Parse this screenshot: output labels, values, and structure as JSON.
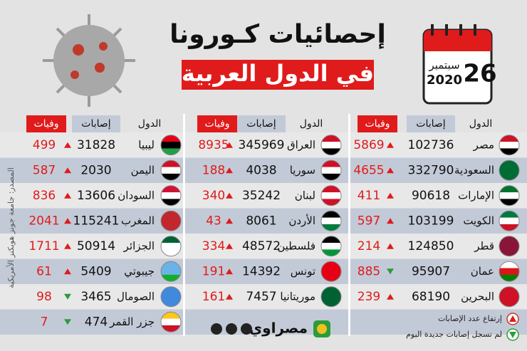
{
  "header": {
    "title": "إحصائيات كـورونا",
    "subtitle": "في الدول العربية"
  },
  "date": {
    "day": "26",
    "month": "سبتمبر",
    "year": "2020"
  },
  "table": {
    "columns": [
      "الدول",
      "إصابات",
      "وفيات"
    ],
    "groups": [
      {
        "rows": [
          {
            "country": "مصر",
            "cases": 102736,
            "deaths": 5869,
            "trend": "up"
          },
          {
            "country": "السعودية",
            "cases": 332790,
            "deaths": 4655,
            "trend": "up"
          },
          {
            "country": "الإمارات",
            "cases": 90618,
            "deaths": 411,
            "trend": "up"
          },
          {
            "country": "الكويت",
            "cases": 103199,
            "deaths": 597,
            "trend": "up"
          },
          {
            "country": "قطر",
            "cases": 124850,
            "deaths": 214,
            "trend": "up"
          },
          {
            "country": "عمان",
            "cases": 95907,
            "deaths": 885,
            "trend": "down"
          },
          {
            "country": "البحرين",
            "cases": 68190,
            "deaths": 239,
            "trend": "up"
          }
        ]
      },
      {
        "rows": [
          {
            "country": "العراق",
            "cases": 345969,
            "deaths": 8935,
            "trend": "up"
          },
          {
            "country": "سوريا",
            "cases": 4038,
            "deaths": 188,
            "trend": "up"
          },
          {
            "country": "لبنان",
            "cases": 35242,
            "deaths": 340,
            "trend": "up"
          },
          {
            "country": "الأردن",
            "cases": 8061,
            "deaths": 43,
            "trend": "up"
          },
          {
            "country": "فلسطين",
            "cases": 48572,
            "deaths": 334,
            "trend": "up"
          },
          {
            "country": "تونس",
            "cases": 14392,
            "deaths": 191,
            "trend": "up"
          },
          {
            "country": "موريتانيا",
            "cases": 7457,
            "deaths": 161,
            "trend": "up"
          }
        ]
      },
      {
        "rows": [
          {
            "country": "ليبيا",
            "cases": 31828,
            "deaths": 499,
            "trend": "up"
          },
          {
            "country": "اليمن",
            "cases": 2030,
            "deaths": 587,
            "trend": "up"
          },
          {
            "country": "السودان",
            "cases": 13606,
            "deaths": 836,
            "trend": "up"
          },
          {
            "country": "المغرب",
            "cases": 115241,
            "deaths": 2041,
            "trend": "up"
          },
          {
            "country": "الجزائر",
            "cases": 50914,
            "deaths": 1711,
            "trend": "up"
          },
          {
            "country": "جيبوتي",
            "cases": 5409,
            "deaths": 61,
            "trend": "up"
          },
          {
            "country": "الصومال",
            "cases": 3465,
            "deaths": 98,
            "trend": "down"
          },
          {
            "country": "جزر القمر",
            "cases": 474,
            "deaths": 7,
            "trend": "down"
          }
        ]
      }
    ]
  },
  "legend": {
    "up": "إرتفاع عدد الإصابات",
    "down": "لم تسجل إصابات جديدة اليوم"
  },
  "source": "المصدر: جامعة جونز هوبكنز الأمريكية",
  "logo": "مصراوي"
}
